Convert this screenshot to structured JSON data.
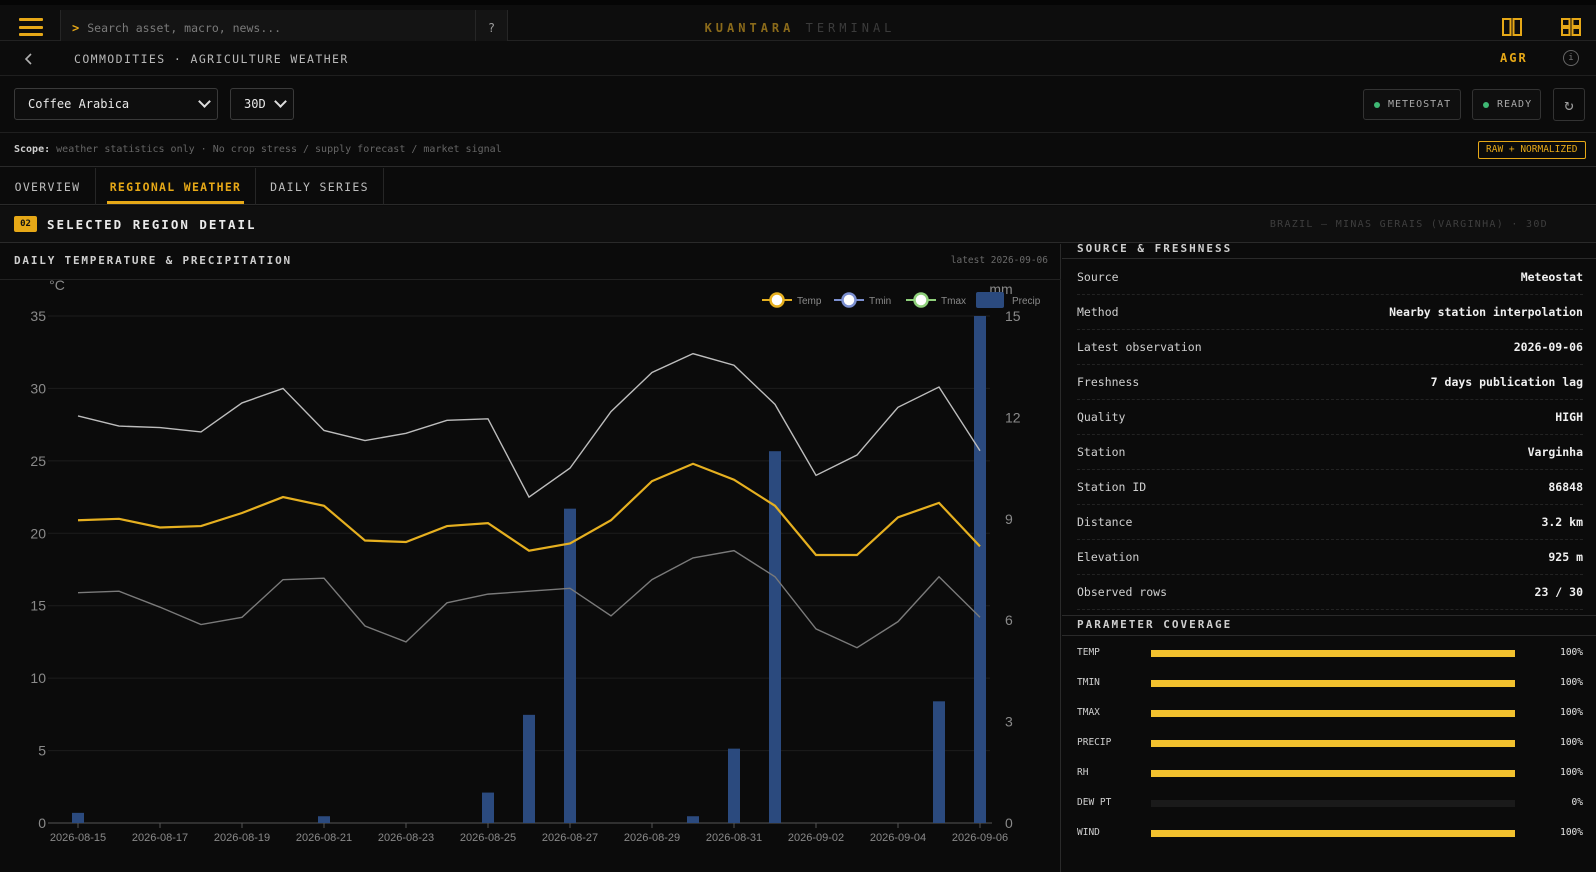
{
  "app": {
    "brand_primary": "KUANTARA",
    "brand_secondary": "TERMINAL",
    "search_placeholder": "Search asset, macro, news...",
    "search_prompt": ">",
    "help_label": "?",
    "accent_color": "#e6a817"
  },
  "breadcrumb": {
    "text": "COMMODITIES · AGRICULTURE WEATHER",
    "code": "AGR",
    "info_label": "i"
  },
  "controls": {
    "commodity": "Coffee Arabica",
    "window": "30D",
    "source_pill": "METEOSTAT",
    "status_pill": "READY",
    "refresh_icon": "↻"
  },
  "scope": {
    "label": "Scope:",
    "text": "weather statistics only · No crop stress / supply forecast / market signal",
    "badge": "RAW + NORMALIZED"
  },
  "tabs": [
    {
      "label": "OVERVIEW",
      "active": false
    },
    {
      "label": "REGIONAL WEATHER",
      "active": true
    },
    {
      "label": "DAILY SERIES",
      "active": false
    }
  ],
  "section": {
    "number": "02",
    "title": "SELECTED REGION DETAIL",
    "meta": "BRAZIL — MINAS GERAIS (VARGINHA) · 30D"
  },
  "chart_panel": {
    "title": "DAILY TEMPERATURE & PRECIPITATION",
    "latest": "latest 2026-09-06"
  },
  "chart_data": {
    "type": "line",
    "y_left_unit": "°C",
    "y_right_unit": "mm",
    "ylim_left": [
      0,
      35
    ],
    "ylim_right": [
      0,
      15
    ],
    "yticks_left": [
      0,
      5,
      10,
      15,
      20,
      25,
      30,
      35
    ],
    "yticks_right": [
      0,
      3,
      6,
      9,
      12,
      15
    ],
    "x": [
      "2026-08-15",
      "2026-08-16",
      "2026-08-17",
      "2026-08-18",
      "2026-08-19",
      "2026-08-20",
      "2026-08-21",
      "2026-08-22",
      "2026-08-23",
      "2026-08-24",
      "2026-08-25",
      "2026-08-26",
      "2026-08-27",
      "2026-08-28",
      "2026-08-29",
      "2026-08-30",
      "2026-08-31",
      "2026-09-01",
      "2026-09-02",
      "2026-09-03",
      "2026-09-04",
      "2026-09-05",
      "2026-09-06"
    ],
    "xtick_labels": [
      "2026-08-15",
      "2026-08-17",
      "2026-08-19",
      "2026-08-21",
      "2026-08-23",
      "2026-08-25",
      "2026-08-27",
      "2026-08-29",
      "2026-08-31",
      "2026-09-02",
      "2026-09-04",
      "2026-09-06"
    ],
    "legend": [
      "Temp",
      "Tmin",
      "Tmax",
      "Precip"
    ],
    "legend_position": "top-right",
    "grid": true,
    "series": [
      {
        "name": "Temp",
        "color": "#e6b020",
        "values": [
          20.9,
          21.0,
          20.4,
          20.5,
          21.4,
          22.5,
          21.9,
          19.5,
          19.4,
          20.5,
          20.7,
          18.8,
          19.3,
          20.9,
          23.6,
          24.8,
          23.7,
          21.9,
          18.5,
          18.5,
          21.1,
          22.1,
          19.1
        ]
      },
      {
        "name": "Tmin",
        "color": "#7a7a7a",
        "values": [
          15.9,
          16.0,
          14.9,
          13.7,
          14.2,
          16.8,
          16.9,
          13.6,
          12.5,
          15.2,
          15.8,
          16.0,
          16.2,
          14.3,
          16.8,
          18.3,
          18.8,
          17.0,
          13.4,
          12.1,
          13.9,
          17.0,
          14.2
        ]
      },
      {
        "name": "Tmax",
        "color": "#bdbdbd",
        "values": [
          28.1,
          27.4,
          27.3,
          27.0,
          29.0,
          30.0,
          27.1,
          26.4,
          26.9,
          27.8,
          27.9,
          22.5,
          24.5,
          28.4,
          31.1,
          32.4,
          31.6,
          28.9,
          24.0,
          25.4,
          28.7,
          30.1,
          25.7
        ]
      },
      {
        "name": "Precip",
        "color": "#2b4a7e",
        "axis": "right",
        "values": [
          0.3,
          0,
          0,
          0,
          0,
          0,
          0.2,
          0,
          0,
          0,
          0.9,
          3.2,
          9.3,
          0,
          0,
          0.2,
          2.2,
          11.0,
          0,
          0,
          0,
          3.6,
          15.0
        ]
      }
    ]
  },
  "source": {
    "title": "SOURCE & FRESHNESS",
    "rows": [
      {
        "k": "Source",
        "v": "Meteostat"
      },
      {
        "k": "Method",
        "v": "Nearby station interpolation"
      },
      {
        "k": "Latest observation",
        "v": "2026-09-06"
      },
      {
        "k": "Freshness",
        "v": "7 days publication lag"
      },
      {
        "k": "Quality",
        "v": "HIGH"
      },
      {
        "k": "Station",
        "v": "Varginha"
      },
      {
        "k": "Station ID",
        "v": "86848"
      },
      {
        "k": "Distance",
        "v": "3.2 km"
      },
      {
        "k": "Elevation",
        "v": "925 m"
      },
      {
        "k": "Observed rows",
        "v": "23 / 30"
      }
    ]
  },
  "coverage": {
    "title": "PARAMETER COVERAGE",
    "rows": [
      {
        "label": "TEMP",
        "pct_label": "100%",
        "value": 1.0
      },
      {
        "label": "TMIN",
        "pct_label": "100%",
        "value": 1.0
      },
      {
        "label": "TMAX",
        "pct_label": "100%",
        "value": 1.0
      },
      {
        "label": "PRECIP",
        "pct_label": "100%",
        "value": 1.0
      },
      {
        "label": "RH",
        "pct_label": "100%",
        "value": 1.0
      },
      {
        "label": "DEW PT",
        "pct_label": "0%",
        "value": 0.0
      },
      {
        "label": "WIND",
        "pct_label": "100%",
        "value": 1.0
      }
    ]
  }
}
